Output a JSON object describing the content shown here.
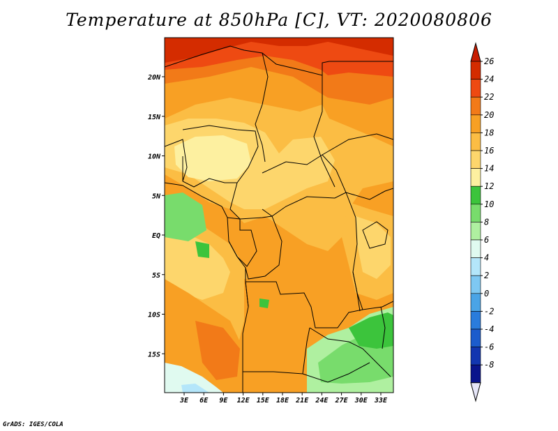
{
  "title": "Temperature at 850hPa [C], VT: 2020080806",
  "credit": "GrADS: IGES/COLA",
  "map": {
    "variable": "Temperature at 850hPa",
    "units": "C",
    "valid_time": "2020080806",
    "lon_labels": [
      "3E",
      "6E",
      "9E",
      "12E",
      "15E",
      "18E",
      "21E",
      "24E",
      "27E",
      "30E",
      "33E"
    ],
    "lat_labels": [
      "20N",
      "15N",
      "10N",
      "5N",
      "EQ",
      "5S",
      "10S",
      "15S"
    ]
  },
  "colorbar": {
    "levels": [
      "26",
      "24",
      "22",
      "20",
      "18",
      "16",
      "14",
      "12",
      "10",
      "8",
      "6",
      "4",
      "2",
      "0",
      "-2",
      "-4",
      "-6",
      "-8"
    ],
    "colors": [
      "#d42c00",
      "#ee4a12",
      "#f27a18",
      "#f8a024",
      "#fbbd44",
      "#fdd66c",
      "#fdf0a0",
      "#3cc43c",
      "#78dc6c",
      "#aff0a0",
      "#e0faf0",
      "#b4e6fa",
      "#7ec8f2",
      "#4aa4e6",
      "#2a7cdc",
      "#1c5ccc",
      "#1236b0",
      "#0a148c"
    ],
    "top_arrow_color": "#c81c00",
    "bottom_arrow_color": "#e6e6f8"
  },
  "map_colors": {
    "t26": "#d42c00",
    "t24": "#ee4a12",
    "t22": "#f27a18",
    "t20": "#f8a024",
    "t18": "#fbbd44",
    "t16": "#fdd66c",
    "t14": "#fdf0a0",
    "g12": "#3cc43c",
    "g10": "#78dc6c",
    "g8": "#aff0a0",
    "c6": "#e0faf0",
    "c4": "#b4e6fa"
  }
}
